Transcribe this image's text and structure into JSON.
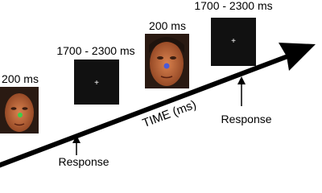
{
  "trials": [
    {
      "duration": "200 ms",
      "stimulus": "face"
    },
    {
      "duration": "1700 - 2300 ms",
      "fixation": "+"
    },
    {
      "duration": "200 ms",
      "stimulus": "face"
    },
    {
      "duration": "1700 - 2300 ms",
      "fixation": "+"
    }
  ],
  "time_axis": {
    "label": "TIME (ms)"
  },
  "responses": [
    "Response",
    "Response"
  ]
}
